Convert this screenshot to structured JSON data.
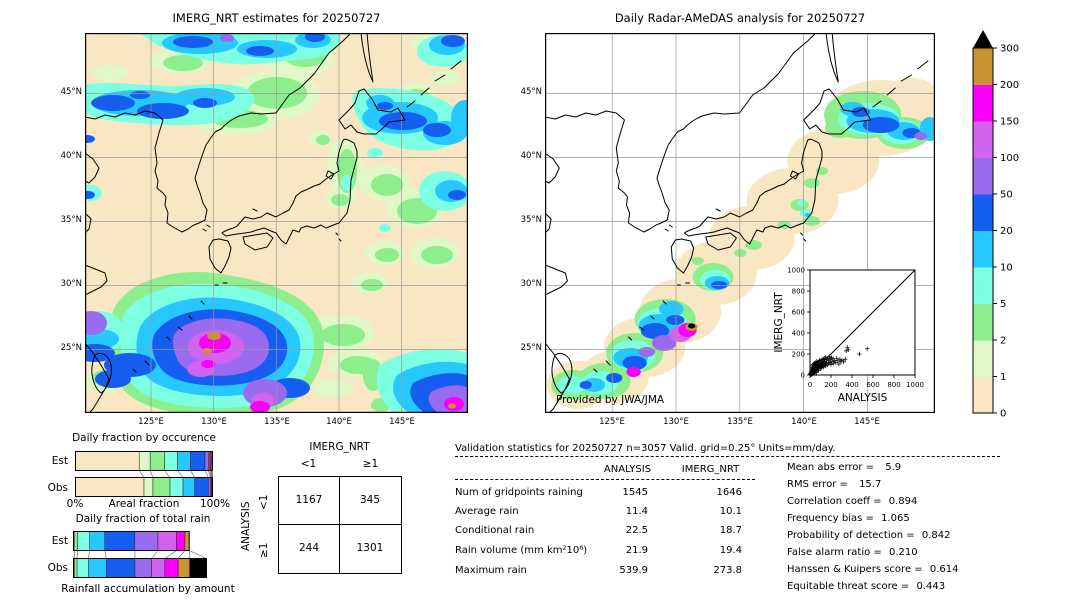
{
  "chart_data": [
    {
      "id": "imerg_map",
      "type": "map",
      "title": "IMERG_NRT estimates for 20250727",
      "lat_ticks": [
        "45°N",
        "40°N",
        "35°N",
        "30°N",
        "25°N"
      ],
      "lon_ticks": [
        "125°E",
        "130°E",
        "135°E",
        "140°E",
        "145°E"
      ],
      "units": "mm/day"
    },
    {
      "id": "radar_map",
      "type": "map",
      "title": "Daily Radar-AMeDAS analysis for 20250727",
      "lat_ticks": [
        "45°N",
        "40°N",
        "35°N",
        "30°N",
        "25°N"
      ],
      "lon_ticks": [
        "125°E",
        "130°E",
        "135°E",
        "140°E",
        "145°E"
      ],
      "credit": "Provided by JWA/JMA",
      "units": "mm/day"
    },
    {
      "id": "colorbar",
      "type": "colorbar",
      "tick_labels": [
        "0",
        "1",
        "2",
        "5",
        "10",
        "20",
        "50",
        "100",
        "150",
        "200",
        "300"
      ],
      "band_colors": [
        "#F8E7C2",
        "#DFF8C6",
        "#8DEE8D",
        "#7DFFE2",
        "#27C8FF",
        "#155EF0",
        "#9A6AEF",
        "#D263F0",
        "#FA00FA",
        "#C8922E"
      ],
      "overflow_color": "#000000"
    },
    {
      "id": "occurrence_fraction",
      "type": "bar",
      "title": "Daily fraction by occurence",
      "axis_labels": {
        "left": "0%",
        "center": "Areal fraction",
        "right": "100%"
      },
      "segment_colors": [
        "#F8E7C2",
        "#DFF8C6",
        "#8DEE8D",
        "#7DFFE2",
        "#27C8FF",
        "#155EF0",
        "#9A6AEF",
        "#D263F0",
        "#FA00FA",
        "#C8922E",
        "#000000"
      ],
      "rows": [
        {
          "label": "Est",
          "length_pct": 100,
          "segments_pct": [
            46.5,
            8,
            10.5,
            9.5,
            9.5,
            10.5,
            2.5,
            1.0,
            0.8,
            0.7,
            0.5
          ]
        },
        {
          "label": "Obs",
          "length_pct": 100,
          "segments_pct": [
            50,
            6.5,
            12.5,
            9.5,
            8.5,
            10,
            1.5,
            0.6,
            0.5,
            0.25,
            0.15
          ]
        }
      ]
    },
    {
      "id": "totalrain_fraction",
      "type": "bar",
      "title": "Daily fraction of total rain",
      "caption": "Rainfall accumulation by amount",
      "segment_colors": [
        "#DFF8C6",
        "#8DEE8D",
        "#7DFFE2",
        "#27C8FF",
        "#155EF0",
        "#9A6AEF",
        "#D263F0",
        "#FA00FA",
        "#C8922E",
        "#000000"
      ],
      "rows": [
        {
          "label": "Est",
          "length_pct": 87,
          "segments_pct": [
            1,
            2.5,
            10.5,
            13,
            26,
            20,
            16,
            7.3,
            3.7,
            0
          ]
        },
        {
          "label": "Obs",
          "length_pct": 100,
          "segments_pct": [
            0.8,
            1.9,
            8.5,
            13.5,
            21.5,
            12.5,
            10,
            10,
            8.6,
            12.7
          ]
        }
      ]
    },
    {
      "id": "contingency",
      "type": "table",
      "col_group": "IMERG_NRT",
      "row_group": "ANALYSIS",
      "col_labels": [
        "<1",
        "≥1"
      ],
      "row_labels": [
        "<1",
        "≥1"
      ],
      "values": [
        [
          "1167",
          "345"
        ],
        [
          "244",
          "1301"
        ]
      ]
    },
    {
      "id": "validation",
      "type": "table",
      "title": "Validation statistics for 20250727  n=3057 Valid. grid=0.25° Units=mm/day.",
      "columns": [
        "ANALYSIS",
        "IMERG_NRT"
      ],
      "rows": [
        [
          "Num of gridpoints raining",
          "1545",
          "1646"
        ],
        [
          "Average rain",
          "11.4",
          "10.1"
        ],
        [
          "Conditional rain",
          "22.5",
          "18.7"
        ],
        [
          "Rain volume (mm km²10⁶)",
          "21.9",
          "19.4"
        ],
        [
          "Maximum rain",
          "539.9",
          "273.8"
        ]
      ],
      "scores": [
        [
          "Mean abs error =",
          "5.9"
        ],
        [
          "RMS error =",
          "15.7"
        ],
        [
          "Correlation coeff =",
          "0.894"
        ],
        [
          "Frequency bias =",
          "1.065"
        ],
        [
          "Probability of detection =",
          "0.842"
        ],
        [
          "False alarm ratio =",
          "0.210"
        ],
        [
          "Hanssen & Kuipers score =",
          "0.614"
        ],
        [
          "Equitable threat score =",
          "0.443"
        ]
      ]
    },
    {
      "id": "scatter_inset",
      "type": "scatter",
      "xlabel": "ANALYSIS",
      "ylabel": "IMERG_NRT",
      "xlim": [
        0,
        1000
      ],
      "ylim": [
        0,
        1000
      ],
      "ticks": [
        0,
        200,
        400,
        600,
        800,
        1000
      ],
      "identity_line": true,
      "points": [
        [
          3,
          5
        ],
        [
          5,
          12
        ],
        [
          6,
          3
        ],
        [
          8,
          20
        ],
        [
          9,
          8
        ],
        [
          10,
          15
        ],
        [
          12,
          4
        ],
        [
          12,
          30
        ],
        [
          14,
          10
        ],
        [
          15,
          22
        ],
        [
          16,
          45
        ],
        [
          18,
          8
        ],
        [
          18,
          60
        ],
        [
          20,
          14
        ],
        [
          20,
          35
        ],
        [
          22,
          70
        ],
        [
          24,
          18
        ],
        [
          25,
          40
        ],
        [
          25,
          90
        ],
        [
          28,
          12
        ],
        [
          28,
          55
        ],
        [
          30,
          25
        ],
        [
          30,
          75
        ],
        [
          32,
          100
        ],
        [
          34,
          20
        ],
        [
          35,
          48
        ],
        [
          36,
          85
        ],
        [
          38,
          30
        ],
        [
          40,
          60
        ],
        [
          40,
          110
        ],
        [
          42,
          22
        ],
        [
          44,
          75
        ],
        [
          45,
          38
        ],
        [
          46,
          95
        ],
        [
          48,
          28
        ],
        [
          50,
          55
        ],
        [
          50,
          120
        ],
        [
          52,
          70
        ],
        [
          55,
          35
        ],
        [
          55,
          90
        ],
        [
          58,
          48
        ],
        [
          60,
          105
        ],
        [
          60,
          25
        ],
        [
          62,
          65
        ],
        [
          65,
          80
        ],
        [
          65,
          130
        ],
        [
          68,
          45
        ],
        [
          70,
          95
        ],
        [
          70,
          58
        ],
        [
          72,
          115
        ],
        [
          75,
          70
        ],
        [
          78,
          85
        ],
        [
          80,
          40
        ],
        [
          80,
          125
        ],
        [
          82,
          100
        ],
        [
          85,
          60
        ],
        [
          88,
          75
        ],
        [
          90,
          140
        ],
        [
          90,
          95
        ],
        [
          95,
          80
        ],
        [
          95,
          115
        ],
        [
          100,
          60
        ],
        [
          100,
          135
        ],
        [
          105,
          90
        ],
        [
          108,
          105
        ],
        [
          110,
          70
        ],
        [
          112,
          145
        ],
        [
          115,
          85
        ],
        [
          118,
          120
        ],
        [
          120,
          100
        ],
        [
          125,
          150
        ],
        [
          128,
          75
        ],
        [
          130,
          110
        ],
        [
          135,
          160
        ],
        [
          138,
          95
        ],
        [
          140,
          130
        ],
        [
          145,
          105
        ],
        [
          150,
          170
        ],
        [
          150,
          85
        ],
        [
          155,
          120
        ],
        [
          160,
          145
        ],
        [
          165,
          95
        ],
        [
          170,
          160
        ],
        [
          175,
          110
        ],
        [
          180,
          135
        ],
        [
          185,
          175
        ],
        [
          190,
          120
        ],
        [
          195,
          150
        ],
        [
          200,
          100
        ],
        [
          205,
          165
        ],
        [
          210,
          130
        ],
        [
          220,
          155
        ],
        [
          225,
          110
        ],
        [
          235,
          140
        ],
        [
          245,
          120
        ],
        [
          255,
          160
        ],
        [
          265,
          135
        ],
        [
          275,
          105
        ],
        [
          285,
          150
        ],
        [
          295,
          125
        ],
        [
          305,
          140
        ],
        [
          320,
          125
        ],
        [
          335,
          150
        ],
        [
          345,
          230
        ],
        [
          355,
          265
        ],
        [
          365,
          240
        ],
        [
          470,
          200
        ],
        [
          545,
          250
        ]
      ]
    }
  ]
}
